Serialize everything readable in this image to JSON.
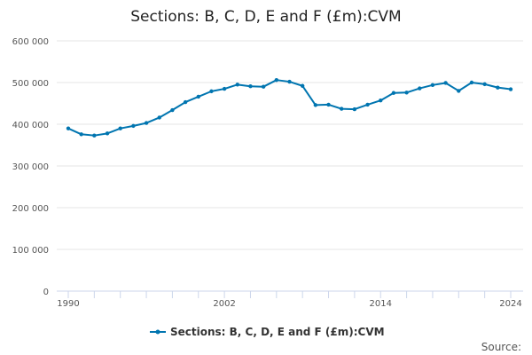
{
  "chart_data": {
    "type": "line",
    "title": "Sections: B, C, D, E and F (£m):CVM",
    "xlabel": "",
    "ylabel": "",
    "source_label": "Source:",
    "line_color": "#0075b0",
    "grid": true,
    "legend_position": "bottom-center",
    "xlim": [
      1990,
      2024
    ],
    "ylim": [
      0,
      600000
    ],
    "x_tick_labels": [
      "1990",
      "2002",
      "2014",
      "2024"
    ],
    "x_tick_values": [
      1990,
      2002,
      2014,
      2024
    ],
    "x_minor_ticks": [
      1990,
      1992,
      1994,
      1996,
      1998,
      2000,
      2002,
      2004,
      2006,
      2008,
      2010,
      2012,
      2014,
      2016,
      2018,
      2020,
      2022,
      2024
    ],
    "y_tick_labels": [
      "0",
      "100 000",
      "200 000",
      "300 000",
      "400 000",
      "500 000",
      "600 000"
    ],
    "y_tick_values": [
      0,
      100000,
      200000,
      300000,
      400000,
      500000,
      600000
    ],
    "series": [
      {
        "name": "Sections: B, C, D, E and F (£m):CVM",
        "x": [
          1990,
          1991,
          1992,
          1993,
          1994,
          1995,
          1996,
          1997,
          1998,
          1999,
          2000,
          2001,
          2002,
          2003,
          2004,
          2005,
          2006,
          2007,
          2008,
          2009,
          2010,
          2011,
          2012,
          2013,
          2014,
          2015,
          2016,
          2017,
          2018,
          2019,
          2020,
          2021,
          2022,
          2023,
          2024
        ],
        "values": [
          390000,
          376000,
          373000,
          378000,
          390000,
          396000,
          403000,
          416000,
          434000,
          453000,
          466000,
          479000,
          485000,
          495000,
          491000,
          490000,
          506000,
          502000,
          492000,
          446000,
          447000,
          437000,
          436000,
          447000,
          457000,
          475000,
          476000,
          486000,
          494000,
          499000,
          480000,
          500000,
          496000,
          488000,
          484000
        ]
      }
    ]
  }
}
